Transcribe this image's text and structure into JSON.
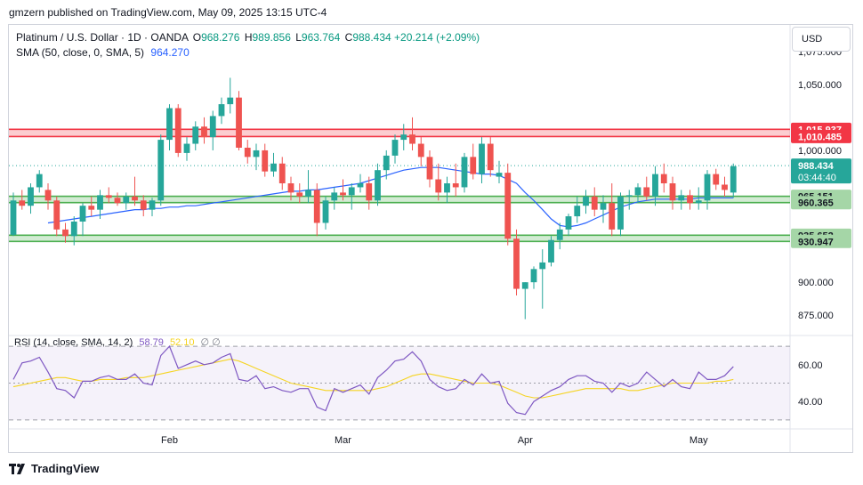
{
  "header": {
    "published": "gmzern published on TradingView.com, May 09, 2025 13:15 UTC-4"
  },
  "legend": {
    "symbol": "Platinum / U.S. Dollar · 1D · OANDA",
    "o_label": "O",
    "o_value": "968.276",
    "h_label": "H",
    "h_value": "989.856",
    "l_label": "L",
    "l_value": "963.764",
    "c_label": "C",
    "c_value": "988.434",
    "change": "+20.214 (+2.09%)",
    "sma_label": "SMA (50, close, 0, SMA, 5)",
    "sma_value": "964.270",
    "rsi_label": "RSI (14, close, SMA, 14, 2)",
    "rsi_value": "58.79",
    "rsi_ma_value": "52.10",
    "rsi_extra": "∅ ∅"
  },
  "currency": "USD",
  "footer": {
    "brand": "TradingView"
  },
  "colors": {
    "up": "#26a69a",
    "down": "#ef5350",
    "sma": "#2962ff",
    "rsi": "#7e57c2",
    "rsi_ma": "#f5d423",
    "resistance": "#f23645",
    "support": "#4caf50"
  },
  "chart_data": {
    "type": "candlestick",
    "price_axis": {
      "ylim": [
        863,
        1087
      ],
      "ticks": [
        "875.000",
        "900.000",
        "1,000.000",
        "1,050.000",
        "1,075.000"
      ]
    },
    "x_labels": [
      {
        "label": "Feb",
        "index": 18
      },
      {
        "label": "Mar",
        "index": 38
      },
      {
        "label": "Apr",
        "index": 59
      },
      {
        "label": "May",
        "index": 79
      }
    ],
    "levels": [
      {
        "label": "1,015.937",
        "value": 1015.937,
        "kind": "resistance"
      },
      {
        "label": "1,010.485",
        "value": 1010.485,
        "kind": "resistance"
      },
      {
        "label": "965.151",
        "value": 965.151,
        "kind": "support"
      },
      {
        "label": "960.365",
        "value": 960.365,
        "kind": "support"
      },
      {
        "label": "935.652",
        "value": 935.652,
        "kind": "support"
      },
      {
        "label": "930.947",
        "value": 930.947,
        "kind": "support"
      }
    ],
    "current_price": {
      "label": "988.434",
      "countdown": "03:44:40",
      "value": 988.434
    },
    "ohlc": [
      [
        936,
        968,
        935,
        962
      ],
      [
        962,
        970,
        955,
        958
      ],
      [
        958,
        975,
        952,
        972
      ],
      [
        972,
        985,
        968,
        982
      ],
      [
        970,
        975,
        955,
        962
      ],
      [
        962,
        965,
        935,
        940
      ],
      [
        940,
        945,
        930,
        935
      ],
      [
        935,
        950,
        928,
        946
      ],
      [
        946,
        960,
        935,
        958
      ],
      [
        958,
        965,
        950,
        955
      ],
      [
        955,
        970,
        948,
        966
      ],
      [
        966,
        972,
        960,
        964
      ],
      [
        964,
        968,
        958,
        960
      ],
      [
        960,
        968,
        955,
        965
      ],
      [
        965,
        980,
        958,
        962
      ],
      [
        962,
        966,
        950,
        955
      ],
      [
        955,
        964,
        950,
        962
      ],
      [
        962,
        1012,
        958,
        1008
      ],
      [
        1008,
        1035,
        1000,
        1032
      ],
      [
        1032,
        1035,
        995,
        998
      ],
      [
        998,
        1010,
        992,
        1005
      ],
      [
        1005,
        1022,
        1000,
        1018
      ],
      [
        1018,
        1025,
        1005,
        1010
      ],
      [
        1010,
        1030,
        1000,
        1026
      ],
      [
        1026,
        1040,
        1020,
        1035
      ],
      [
        1035,
        1055,
        1028,
        1040
      ],
      [
        1040,
        1045,
        1000,
        1002
      ],
      [
        1002,
        1008,
        990,
        995
      ],
      [
        995,
        1005,
        985,
        1000
      ],
      [
        1000,
        1005,
        980,
        984
      ],
      [
        984,
        998,
        980,
        990
      ],
      [
        990,
        995,
        970,
        975
      ],
      [
        975,
        980,
        962,
        968
      ],
      [
        968,
        975,
        960,
        965
      ],
      [
        965,
        985,
        960,
        970
      ],
      [
        970,
        975,
        935,
        945
      ],
      [
        945,
        965,
        940,
        962
      ],
      [
        962,
        972,
        955,
        968
      ],
      [
        968,
        978,
        962,
        966
      ],
      [
        966,
        975,
        955,
        972
      ],
      [
        972,
        982,
        968,
        975
      ],
      [
        975,
        980,
        955,
        962
      ],
      [
        962,
        990,
        958,
        985
      ],
      [
        985,
        1000,
        978,
        996
      ],
      [
        996,
        1012,
        990,
        1008
      ],
      [
        1008,
        1020,
        1000,
        1012
      ],
      [
        1012,
        1025,
        1000,
        1005
      ],
      [
        1005,
        1010,
        988,
        995
      ],
      [
        995,
        1000,
        972,
        978
      ],
      [
        978,
        990,
        962,
        968
      ],
      [
        968,
        980,
        960,
        975
      ],
      [
        975,
        990,
        965,
        972
      ],
      [
        972,
        998,
        968,
        995
      ],
      [
        995,
        1005,
        978,
        982
      ],
      [
        982,
        1010,
        975,
        1005
      ],
      [
        1005,
        1010,
        980,
        985
      ],
      [
        980,
        992,
        975,
        983
      ],
      [
        983,
        990,
        928,
        933
      ],
      [
        933,
        940,
        890,
        895
      ],
      [
        895,
        900,
        872,
        900
      ],
      [
        900,
        912,
        895,
        910
      ],
      [
        910,
        925,
        880,
        915
      ],
      [
        915,
        935,
        912,
        932
      ],
      [
        932,
        945,
        925,
        940
      ],
      [
        940,
        952,
        935,
        950
      ],
      [
        950,
        965,
        945,
        958
      ],
      [
        958,
        970,
        952,
        965
      ],
      [
        965,
        972,
        950,
        955
      ],
      [
        955,
        966,
        945,
        960
      ],
      [
        960,
        975,
        935,
        940
      ],
      [
        940,
        968,
        935,
        965
      ],
      [
        965,
        970,
        955,
        966
      ],
      [
        966,
        975,
        960,
        972
      ],
      [
        972,
        980,
        962,
        965
      ],
      [
        965,
        988,
        958,
        982
      ],
      [
        982,
        990,
        968,
        975
      ],
      [
        975,
        980,
        955,
        962
      ],
      [
        962,
        970,
        955,
        966
      ],
      [
        966,
        970,
        955,
        960
      ],
      [
        960,
        972,
        955,
        962
      ],
      [
        962,
        985,
        955,
        982
      ],
      [
        982,
        986,
        970,
        974
      ],
      [
        974,
        980,
        965,
        970
      ],
      [
        968,
        990,
        964,
        988
      ]
    ],
    "sma50": [
      945,
      946,
      947,
      948,
      949,
      950,
      951,
      952,
      953,
      954,
      955,
      955,
      956,
      956,
      957,
      957,
      958,
      958,
      959,
      960,
      961,
      962,
      963,
      964,
      965,
      966,
      967,
      968,
      969,
      969,
      970,
      970,
      971,
      972,
      973,
      974,
      975,
      977,
      979,
      981,
      983,
      985,
      986,
      987,
      987,
      987,
      986,
      985,
      984,
      983,
      982,
      982,
      981,
      978,
      975,
      968,
      962,
      955,
      948,
      943,
      942,
      943,
      945,
      948,
      951,
      954,
      957,
      959,
      961,
      962,
      963,
      963,
      963,
      963,
      963,
      964,
      964,
      964,
      964,
      964
    ],
    "sma50_start_index": 4,
    "rsi_axis": {
      "ylim": [
        28,
        72
      ],
      "ticks": [
        "60.00",
        "40.00"
      ],
      "upper": 70,
      "lower": 30
    },
    "rsi": [
      52,
      61,
      62,
      64,
      56,
      47,
      46,
      42,
      51,
      51,
      53,
      54,
      52,
      52,
      55,
      50,
      49,
      65,
      70,
      58,
      60,
      62,
      60,
      61,
      64,
      66,
      52,
      51,
      54,
      47,
      48,
      46,
      45,
      47,
      47,
      37,
      35,
      47,
      45,
      47,
      49,
      44,
      53,
      57,
      62,
      63,
      67,
      62,
      52,
      48,
      46,
      47,
      52,
      49,
      55,
      50,
      51,
      39,
      34,
      33,
      40,
      43,
      46,
      48,
      52,
      54,
      54,
      51,
      50,
      45,
      50,
      48,
      50,
      56,
      52,
      48,
      52,
      48,
      47,
      56,
      52,
      52,
      54,
      59
    ],
    "rsi_ma": [
      48,
      49,
      50,
      51,
      52,
      53,
      53,
      52,
      51,
      51,
      52,
      52,
      52,
      53,
      53,
      53,
      54,
      55,
      56,
      57,
      58,
      59,
      60,
      61,
      62,
      63,
      62,
      60,
      58,
      56,
      54,
      52,
      50,
      49,
      48,
      47,
      46,
      46,
      46,
      46,
      46,
      46,
      47,
      48,
      50,
      52,
      54,
      55,
      55,
      54,
      53,
      52,
      51,
      50,
      50,
      50,
      49,
      47,
      45,
      43,
      42,
      42,
      43,
      44,
      45,
      46,
      47,
      47,
      47,
      47,
      47,
      46,
      46,
      47,
      48,
      49,
      50,
      50,
      50,
      50,
      50,
      51,
      51,
      52
    ],
    "ylabel": "",
    "xlabel": ""
  }
}
